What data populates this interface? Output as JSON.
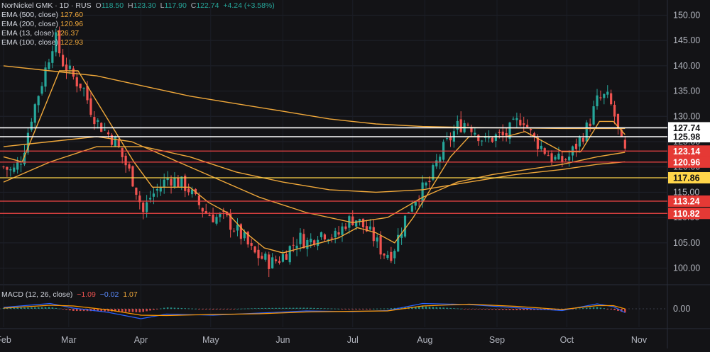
{
  "header": {
    "symbol_line": "NorNickel GMK · 1D · RUS",
    "ohlc": {
      "o_label": "O",
      "o": "118.50",
      "h_label": "H",
      "h": "123.30",
      "l_label": "L",
      "l": "117.90",
      "c_label": "C",
      "c": "122.74",
      "change": "+4.24 (+3.58%)"
    },
    "indicators": [
      {
        "label": "EMA (500, close)",
        "value": "127.60",
        "color": "#f0a83a"
      },
      {
        "label": "EMA (200, close)",
        "value": "120.96",
        "color": "#f0a83a"
      },
      {
        "label": "EMA (13, close)",
        "value": "126.37",
        "color": "#f0a83a"
      },
      {
        "label": "EMA (100, close)",
        "value": "122.93",
        "color": "#f0a83a"
      }
    ],
    "macd": {
      "label": "MACD (12, 26, close)",
      "v1": "−1.09",
      "v2": "−0.02",
      "v3": "1.07"
    }
  },
  "colors": {
    "up": "#26a69a",
    "down": "#ef5350",
    "ema": "#f0a83a",
    "white_level": "#ffffff",
    "yellow_level": "#ffd54a",
    "red_level": "#ef4444",
    "macd_line": "#2962ff",
    "signal_line": "#ff9800"
  },
  "chart_data": {
    "type": "candlestick",
    "y_ticks": [
      100,
      105,
      110,
      115,
      120,
      125,
      130,
      135,
      140,
      145,
      150
    ],
    "y_tick_labels": [
      "100.00",
      "105.00",
      "110.00",
      "115.00",
      "120.00",
      "125.00",
      "130.00",
      "135.00",
      "140.00",
      "145.00",
      "150.00"
    ],
    "ylim": [
      97,
      153
    ],
    "x_labels": [
      {
        "label": "Feb",
        "day": 0
      },
      {
        "label": "Mar",
        "day": 28
      },
      {
        "label": "Apr",
        "day": 59
      },
      {
        "label": "May",
        "day": 89
      },
      {
        "label": "Jun",
        "day": 120
      },
      {
        "label": "Jul",
        "day": 150
      },
      {
        "label": "Aug",
        "day": 181
      },
      {
        "label": "Sep",
        "day": 212
      },
      {
        "label": "Oct",
        "day": 242
      },
      {
        "label": "Nov",
        "day": 273
      }
    ],
    "price_levels": [
      {
        "value": 127.74,
        "label": "127.74",
        "kind": "white"
      },
      {
        "value": 125.98,
        "label": "125.98",
        "kind": "white"
      },
      {
        "value": 123.14,
        "label": "123.14",
        "kind": "red"
      },
      {
        "value": 120.96,
        "label": "120.96",
        "kind": "red"
      },
      {
        "value": 117.86,
        "label": "117.86",
        "kind": "yellow"
      },
      {
        "value": 113.24,
        "label": "113.24",
        "kind": "red"
      },
      {
        "value": 110.82,
        "label": "110.82",
        "kind": "red"
      }
    ],
    "close_path": [
      [
        0,
        120
      ],
      [
        4,
        119
      ],
      [
        8,
        122
      ],
      [
        12,
        130
      ],
      [
        16,
        136
      ],
      [
        19,
        141
      ],
      [
        22,
        146
      ],
      [
        25,
        141
      ],
      [
        28,
        139
      ],
      [
        31,
        137
      ],
      [
        34,
        136
      ],
      [
        37,
        132
      ],
      [
        40,
        129
      ],
      [
        44,
        127
      ],
      [
        48,
        125
      ],
      [
        52,
        121
      ],
      [
        56,
        117
      ],
      [
        60,
        111
      ],
      [
        63,
        114
      ],
      [
        67,
        116
      ],
      [
        71,
        118
      ],
      [
        75,
        117
      ],
      [
        79,
        116
      ],
      [
        83,
        113
      ],
      [
        87,
        111
      ],
      [
        91,
        110
      ],
      [
        95,
        110
      ],
      [
        99,
        108
      ],
      [
        103,
        106
      ],
      [
        107,
        103
      ],
      [
        111,
        102
      ],
      [
        115,
        101
      ],
      [
        119,
        102
      ],
      [
        123,
        104
      ],
      [
        127,
        106
      ],
      [
        131,
        105
      ],
      [
        135,
        107
      ],
      [
        139,
        107
      ],
      [
        143,
        106
      ],
      [
        147,
        109
      ],
      [
        151,
        110
      ],
      [
        155,
        108
      ],
      [
        159,
        106
      ],
      [
        163,
        103
      ],
      [
        167,
        103
      ],
      [
        171,
        108
      ],
      [
        175,
        113
      ],
      [
        179,
        115
      ],
      [
        183,
        117
      ],
      [
        187,
        122
      ],
      [
        191,
        125
      ],
      [
        195,
        128
      ],
      [
        199,
        129
      ],
      [
        203,
        127
      ],
      [
        207,
        125
      ],
      [
        211,
        126
      ],
      [
        215,
        126
      ],
      [
        219,
        128
      ],
      [
        223,
        130
      ],
      [
        227,
        126
      ],
      [
        231,
        124
      ],
      [
        235,
        122
      ],
      [
        239,
        121
      ],
      [
        243,
        122
      ],
      [
        247,
        125
      ],
      [
        251,
        128
      ],
      [
        255,
        133
      ],
      [
        259,
        134
      ],
      [
        262,
        131
      ],
      [
        265,
        125
      ],
      [
        267,
        122.7
      ]
    ],
    "ema_series": [
      {
        "name": "EMA (13, close)",
        "points": [
          [
            0,
            122
          ],
          [
            8,
            121
          ],
          [
            16,
            130
          ],
          [
            24,
            139
          ],
          [
            32,
            139
          ],
          [
            40,
            133
          ],
          [
            48,
            127
          ],
          [
            56,
            121
          ],
          [
            64,
            116
          ],
          [
            72,
            116
          ],
          [
            80,
            116
          ],
          [
            88,
            113
          ],
          [
            96,
            111
          ],
          [
            104,
            107
          ],
          [
            112,
            104
          ],
          [
            120,
            103
          ],
          [
            128,
            104
          ],
          [
            136,
            105
          ],
          [
            144,
            106
          ],
          [
            152,
            108
          ],
          [
            160,
            107
          ],
          [
            168,
            105
          ],
          [
            176,
            110
          ],
          [
            184,
            116
          ],
          [
            192,
            122
          ],
          [
            200,
            126
          ],
          [
            208,
            126
          ],
          [
            216,
            126
          ],
          [
            224,
            127
          ],
          [
            232,
            125
          ],
          [
            240,
            123
          ],
          [
            248,
            123
          ],
          [
            256,
            129
          ],
          [
            262,
            129
          ],
          [
            267,
            126.4
          ]
        ]
      },
      {
        "name": "EMA (100, close)",
        "points": [
          [
            0,
            124
          ],
          [
            20,
            125
          ],
          [
            40,
            126
          ],
          [
            55,
            125
          ],
          [
            70,
            122
          ],
          [
            90,
            118
          ],
          [
            110,
            114
          ],
          [
            130,
            111
          ],
          [
            150,
            109
          ],
          [
            165,
            110
          ],
          [
            180,
            114
          ],
          [
            195,
            117
          ],
          [
            210,
            118.5
          ],
          [
            225,
            119.5
          ],
          [
            240,
            120.5
          ],
          [
            255,
            122
          ],
          [
            267,
            122.9
          ]
        ]
      },
      {
        "name": "EMA (200, close)",
        "points": [
          [
            0,
            117
          ],
          [
            20,
            121
          ],
          [
            40,
            124
          ],
          [
            60,
            124
          ],
          [
            80,
            122
          ],
          [
            100,
            119
          ],
          [
            120,
            117
          ],
          [
            140,
            115.5
          ],
          [
            160,
            115
          ],
          [
            180,
            115.5
          ],
          [
            200,
            117
          ],
          [
            220,
            118.5
          ],
          [
            240,
            119.5
          ],
          [
            255,
            120.5
          ],
          [
            267,
            121
          ]
        ]
      },
      {
        "name": "EMA (500, close)",
        "points": [
          [
            0,
            140
          ],
          [
            20,
            139
          ],
          [
            40,
            138
          ],
          [
            60,
            136
          ],
          [
            80,
            134
          ],
          [
            100,
            132.5
          ],
          [
            120,
            131
          ],
          [
            140,
            129.5
          ],
          [
            160,
            128.5
          ],
          [
            180,
            128
          ],
          [
            200,
            127.8
          ],
          [
            220,
            127.7
          ],
          [
            240,
            127.6
          ],
          [
            255,
            127.6
          ],
          [
            267,
            127.6
          ]
        ]
      }
    ],
    "macd_panel": {
      "y_tick": "0.00",
      "macd_points": [
        [
          0,
          0.4
        ],
        [
          20,
          1.5
        ],
        [
          30,
          0.2
        ],
        [
          45,
          -1
        ],
        [
          59,
          -2.8
        ],
        [
          70,
          -1.5
        ],
        [
          90,
          -1.8
        ],
        [
          110,
          -1.2
        ],
        [
          130,
          -0.6
        ],
        [
          150,
          -0.8
        ],
        [
          165,
          -0.5
        ],
        [
          180,
          1.5
        ],
        [
          200,
          1.2
        ],
        [
          220,
          0.3
        ],
        [
          240,
          -0.5
        ],
        [
          255,
          1.4
        ],
        [
          262,
          0.6
        ],
        [
          267,
          -1.09
        ]
      ],
      "signal_points": [
        [
          0,
          0.2
        ],
        [
          20,
          1
        ],
        [
          30,
          0.8
        ],
        [
          45,
          -0.3
        ],
        [
          59,
          -1.8
        ],
        [
          70,
          -1.9
        ],
        [
          90,
          -1.6
        ],
        [
          110,
          -1.4
        ],
        [
          130,
          -0.9
        ],
        [
          150,
          -0.7
        ],
        [
          165,
          -0.6
        ],
        [
          180,
          0.8
        ],
        [
          200,
          1.3
        ],
        [
          220,
          0.7
        ],
        [
          240,
          -0.2
        ],
        [
          255,
          0.9
        ],
        [
          262,
          0.9
        ],
        [
          267,
          -0.02
        ]
      ]
    }
  }
}
